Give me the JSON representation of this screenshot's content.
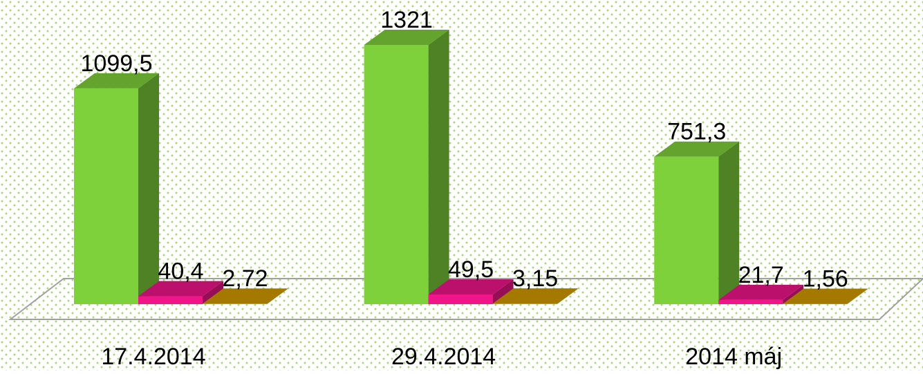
{
  "chart_data": {
    "type": "bar3d",
    "categories": [
      "17.4.2014",
      "29.4.2014",
      "2014 máj"
    ],
    "series": [
      {
        "color": "#7fd13b",
        "values": [
          1099.5,
          1321,
          751.3
        ],
        "value_labels": [
          "1099,5",
          "1321",
          "751,3"
        ]
      },
      {
        "color": "#f0168a",
        "values": [
          40.4,
          49.5,
          21.7
        ],
        "value_labels": [
          "40,4",
          "49,5",
          "21,7"
        ]
      },
      {
        "color": "#d49a00",
        "values": [
          2.72,
          3.15,
          1.56
        ],
        "value_labels": [
          "2,72",
          "3,15",
          "1,56"
        ]
      }
    ],
    "ylim": [
      0,
      1550
    ]
  }
}
